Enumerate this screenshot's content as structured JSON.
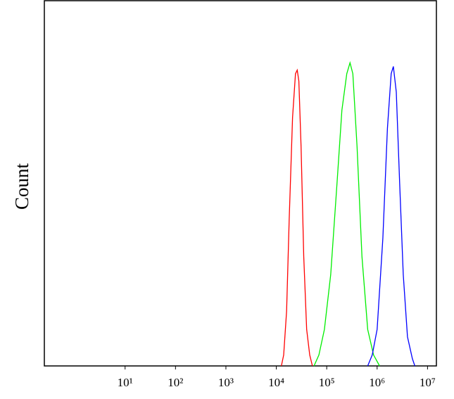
{
  "chart_data": {
    "type": "line",
    "y_label": "Count",
    "xscale": "log",
    "xlim": [
      0.25,
      15000000
    ],
    "ylim": [
      0,
      100
    ],
    "xticks": [
      {
        "value": 10,
        "label": "10¹"
      },
      {
        "value": 100,
        "label": "10²"
      },
      {
        "value": 1000,
        "label": "10³"
      },
      {
        "value": 10000,
        "label": "10⁴"
      },
      {
        "value": 100000,
        "label": "10⁵"
      },
      {
        "value": 1000000,
        "label": "10⁶"
      },
      {
        "value": 10000000,
        "label": "10⁷"
      }
    ],
    "series": [
      {
        "color": "#ff0000",
        "x": [
          12600,
          14000,
          16000,
          18000,
          21000,
          24000,
          26000,
          28000,
          31000,
          35000,
          40000,
          46000,
          52000
        ],
        "values": [
          0,
          3,
          15,
          40,
          68,
          80,
          81,
          78,
          60,
          30,
          10,
          3,
          0
        ]
      },
      {
        "color": "#00ee00",
        "x": [
          56000,
          70000,
          90000,
          120000,
          160000,
          200000,
          250000,
          290000,
          330000,
          400000,
          500000,
          650000,
          850000,
          1120000
        ],
        "values": [
          0,
          3,
          10,
          25,
          50,
          70,
          80,
          83,
          80,
          60,
          30,
          10,
          3,
          0
        ]
      },
      {
        "color": "#0000ff",
        "x": [
          650000,
          800000,
          1000000,
          1300000,
          1600000,
          1900000,
          2100000,
          2400000,
          2800000,
          3300000,
          4000000,
          5000000,
          5600000
        ],
        "values": [
          0,
          3,
          10,
          35,
          65,
          80,
          82,
          75,
          50,
          25,
          8,
          2,
          0
        ]
      }
    ]
  }
}
